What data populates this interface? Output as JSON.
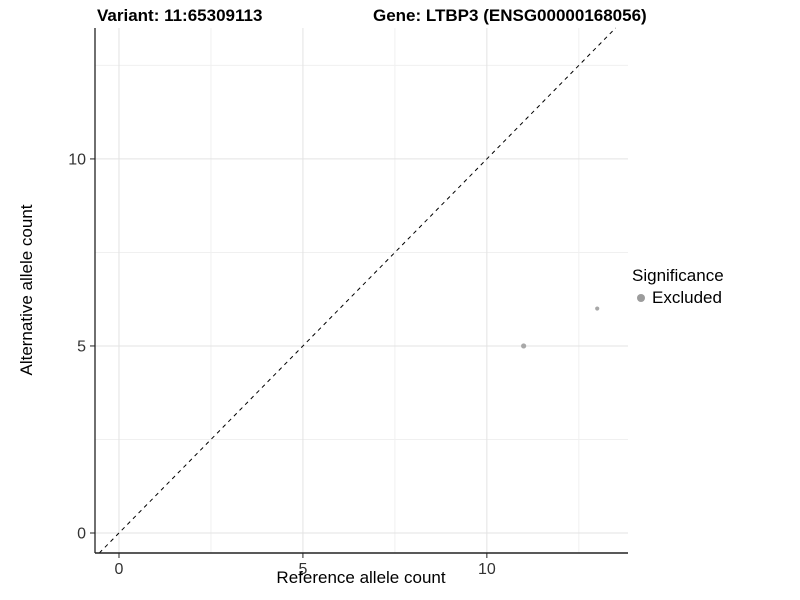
{
  "chart_data": {
    "type": "scatter",
    "title_left": "Variant: 11:65309113",
    "title_right": "Gene: LTBP3 (ENSG00000168056)",
    "xlabel": "Reference allele count",
    "ylabel": "Alternative allele count",
    "xlim": [
      -0.652,
      13.837
    ],
    "ylim": [
      -0.535,
      13.5
    ],
    "x_ticks": [
      0,
      5,
      10
    ],
    "y_ticks": [
      0,
      5,
      10
    ],
    "x_minor_ticks": [
      2.5,
      7.5,
      12.5
    ],
    "y_minor_ticks": [
      2.5,
      7.5,
      12.5
    ],
    "grid": {
      "major_color": "#e3e3e3",
      "minor_color": "#f0f0f0",
      "grid_on": true
    },
    "axis_color": "#222222",
    "tick_label_color": "#333333",
    "identity_line": {
      "style": "dashed",
      "color": "#000000",
      "dash": "4,4"
    },
    "series": [
      {
        "name": "Excluded",
        "color": "#a8a8a8",
        "points": [
          {
            "x": 11,
            "y": 5,
            "r": 2.6
          },
          {
            "x": 13,
            "y": 6,
            "r": 2.1
          }
        ]
      }
    ],
    "legend": {
      "position": "right",
      "title": "Significance",
      "items": [
        {
          "label": "Excluded",
          "color": "#9c9c9c"
        }
      ]
    }
  }
}
